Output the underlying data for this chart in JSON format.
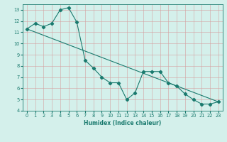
{
  "xlabel": "Humidex (Indice chaleur)",
  "line1_x": [
    0,
    1,
    2,
    3,
    4,
    5,
    6,
    7,
    8,
    9,
    10,
    11,
    12,
    13,
    14,
    15,
    16,
    17,
    18,
    19,
    20,
    21,
    22,
    23
  ],
  "line1_y": [
    11.3,
    11.8,
    11.5,
    11.8,
    13.0,
    13.2,
    11.9,
    8.5,
    7.8,
    7.0,
    6.5,
    6.5,
    5.0,
    5.6,
    7.5,
    7.5,
    7.5,
    6.5,
    6.2,
    5.5,
    5.0,
    4.6,
    4.6,
    4.8
  ],
  "line2_x": [
    0,
    23
  ],
  "line2_y": [
    11.3,
    4.8
  ],
  "color": "#1a7a6e",
  "bg_color": "#d4f0eb",
  "grid_color": "#b8d8d4",
  "xlim": [
    -0.5,
    23.5
  ],
  "ylim": [
    4,
    13.5
  ],
  "yticks": [
    4,
    5,
    6,
    7,
    8,
    9,
    10,
    11,
    12,
    13
  ],
  "xticks": [
    0,
    1,
    2,
    3,
    4,
    5,
    6,
    7,
    8,
    9,
    10,
    11,
    12,
    13,
    14,
    15,
    16,
    17,
    18,
    19,
    20,
    21,
    22,
    23
  ],
  "xlabel_fontsize": 5.5,
  "tick_fontsize": 4.8,
  "marker_size": 2.2,
  "linewidth": 0.8
}
